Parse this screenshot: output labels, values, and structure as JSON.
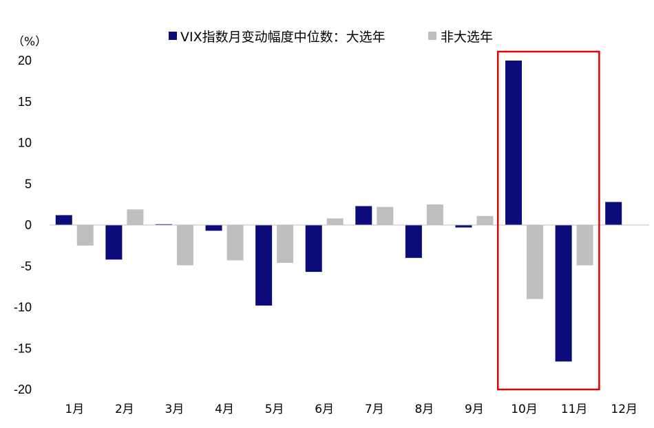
{
  "chart_data": {
    "type": "bar",
    "unit_label": "（%）",
    "categories": [
      "1月",
      "2月",
      "3月",
      "4月",
      "5月",
      "6月",
      "7月",
      "8月",
      "9月",
      "10月",
      "11月",
      "12月"
    ],
    "series": [
      {
        "name": "VIX指数月变动幅度中位数：大选年",
        "color": "#0b0b7a",
        "values": [
          1.2,
          -4.2,
          0.1,
          -0.7,
          -9.8,
          -5.7,
          2.3,
          -4.0,
          -0.3,
          20.0,
          -16.6,
          2.8
        ]
      },
      {
        "name": "非大选年",
        "color": "#bfbfbf",
        "values": [
          -2.5,
          1.9,
          -4.9,
          -4.3,
          -4.6,
          0.8,
          2.2,
          2.5,
          1.1,
          -9.0,
          -4.9,
          null
        ]
      }
    ],
    "yticks": [
      20,
      15,
      10,
      5,
      0,
      -5,
      -10,
      -15,
      -20
    ],
    "ylim": [
      -20,
      20
    ],
    "highlight": {
      "categories": [
        "10月",
        "11月"
      ],
      "color": "#e60000"
    },
    "legend_position": "top-center",
    "grid": false
  }
}
